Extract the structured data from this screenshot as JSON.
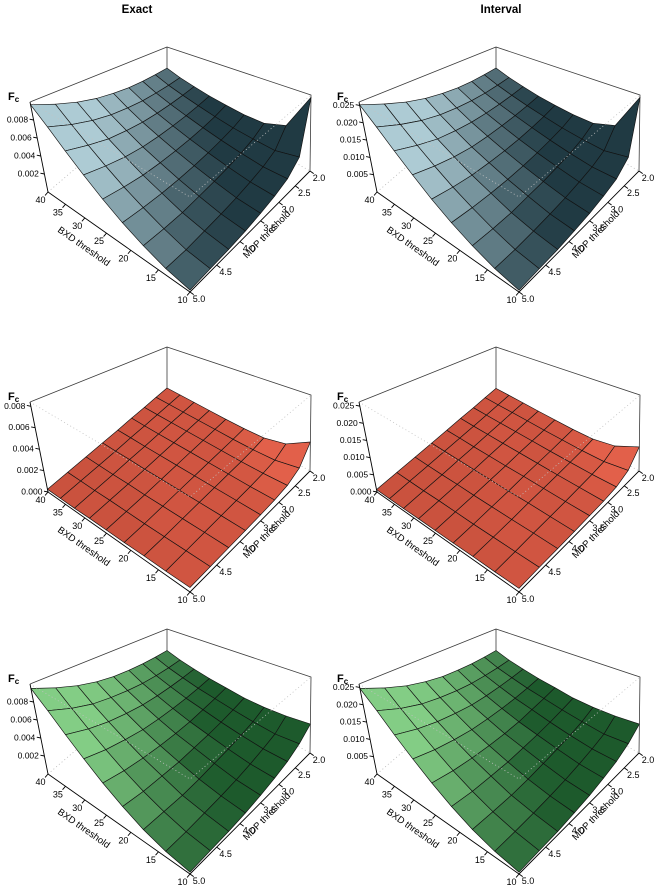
{
  "column_titles": {
    "left": "Exact",
    "right": "Interval"
  },
  "axes": {
    "z_label": "F",
    "z_label_sub": "c",
    "x_label": "BXD threshold",
    "y_label": "MDP threshold",
    "x_tick_labels": [
      "40",
      "35",
      "30",
      "25",
      "20",
      "15",
      "10"
    ],
    "y_tick_labels": [
      "5.0",
      "4.5",
      "4.0",
      "3.5",
      "3.0",
      "2.5",
      "2.0"
    ]
  },
  "chart_data": [
    {
      "type": "surface_3d",
      "column": "Exact",
      "row": 1,
      "color_family": "cool",
      "title": "Exact",
      "xlabel": "BXD threshold",
      "ylabel": "MDP threshold",
      "zlabel": "Fc",
      "x_range": [
        40,
        10
      ],
      "y_range": [
        5.0,
        2.0
      ],
      "z_axis_max": 0.01,
      "z_tick_labels": [
        "0.008",
        "0.006",
        "0.004",
        "0.002"
      ],
      "surface_color_light": "#adcbd4",
      "surface_color_dark": "#203a43",
      "x_grid": [
        40,
        36.25,
        32.5,
        28.75,
        25,
        21.25,
        17.5,
        13.75,
        10
      ],
      "y_grid": [
        5.0,
        4.625,
        4.25,
        3.875,
        3.5,
        3.125,
        2.75,
        2.375,
        2.0
      ],
      "z_unit": 0.001,
      "z_values": [
        [
          9.7,
          8.6,
          7.6,
          6.8,
          6.2,
          5.7,
          5.4,
          5.2,
          5.1
        ],
        [
          8.2,
          7.1,
          6.2,
          5.5,
          5.0,
          4.6,
          4.4,
          4.3,
          4.3
        ],
        [
          6.6,
          5.7,
          4.9,
          4.4,
          4.0,
          3.8,
          3.7,
          3.7,
          3.8
        ],
        [
          5.1,
          4.4,
          3.8,
          3.4,
          3.2,
          3.1,
          3.1,
          3.2,
          3.4
        ],
        [
          3.7,
          3.2,
          2.8,
          2.6,
          2.5,
          2.5,
          2.6,
          2.8,
          3.2
        ],
        [
          2.5,
          2.2,
          2.0,
          1.9,
          1.9,
          2.0,
          2.2,
          2.5,
          3.1
        ],
        [
          1.5,
          1.3,
          1.2,
          1.3,
          1.4,
          1.6,
          1.9,
          2.4,
          3.3
        ],
        [
          0.7,
          0.6,
          0.7,
          0.8,
          1.0,
          1.3,
          1.7,
          2.4,
          4.5
        ],
        [
          0.2,
          0.3,
          0.4,
          0.6,
          0.9,
          1.3,
          1.9,
          3.2,
          9.7
        ]
      ]
    },
    {
      "type": "surface_3d",
      "column": "Interval",
      "row": 1,
      "color_family": "cool",
      "title": "Interval",
      "xlabel": "BXD threshold",
      "ylabel": "MDP threshold",
      "zlabel": "Fc",
      "x_range": [
        40,
        10
      ],
      "y_range": [
        5.0,
        2.0
      ],
      "z_axis_max": 0.026,
      "z_tick_labels": [
        "0.025",
        "0.020",
        "0.015",
        "0.010",
        "0.005"
      ],
      "surface_color_light": "#adcbd4",
      "surface_color_dark": "#203a43",
      "x_grid": [
        40,
        36.25,
        32.5,
        28.75,
        25,
        21.25,
        17.5,
        13.75,
        10
      ],
      "y_grid": [
        5.0,
        4.625,
        4.25,
        3.875,
        3.5,
        3.125,
        2.75,
        2.375,
        2.0
      ],
      "z_unit": 0.001,
      "z_values": [
        [
          25.2,
          22.4,
          19.8,
          17.7,
          16.1,
          14.8,
          14.0,
          13.5,
          13.3
        ],
        [
          21.3,
          18.5,
          16.1,
          14.3,
          13.0,
          12.0,
          11.4,
          11.2,
          11.2
        ],
        [
          17.2,
          14.8,
          12.7,
          11.4,
          10.4,
          9.9,
          9.6,
          9.6,
          9.9
        ],
        [
          13.3,
          11.4,
          9.9,
          8.8,
          8.3,
          8.1,
          8.1,
          8.3,
          8.8
        ],
        [
          9.6,
          8.3,
          7.3,
          6.8,
          6.5,
          6.5,
          6.8,
          7.3,
          8.3
        ],
        [
          6.5,
          5.7,
          5.2,
          4.9,
          4.9,
          5.2,
          5.7,
          6.5,
          8.1
        ],
        [
          3.9,
          3.4,
          3.1,
          3.4,
          3.6,
          4.2,
          4.9,
          6.2,
          8.6
        ],
        [
          1.8,
          1.6,
          1.8,
          2.1,
          2.6,
          3.4,
          4.4,
          6.2,
          11.7
        ],
        [
          0.5,
          0.8,
          1.0,
          1.6,
          2.3,
          3.4,
          4.9,
          8.3,
          25.2
        ]
      ]
    },
    {
      "type": "surface_3d",
      "column": "Exact",
      "row": 2,
      "color_family": "warm",
      "title": "Exact",
      "xlabel": "BXD threshold",
      "ylabel": "MDP threshold",
      "zlabel": "Fc",
      "x_range": [
        40,
        10
      ],
      "y_range": [
        5.0,
        2.0
      ],
      "z_axis_max": 0.0084,
      "z_tick_labels": [
        "0.008",
        "0.006",
        "0.004",
        "0.002",
        "0.000"
      ],
      "surface_color_light": "#e2604a",
      "surface_color_dark": "#7c2517",
      "x_grid": [
        40,
        36.25,
        32.5,
        28.75,
        25,
        21.25,
        17.5,
        13.75,
        10
      ],
      "y_grid": [
        5.0,
        4.625,
        4.25,
        3.875,
        3.5,
        3.125,
        2.75,
        2.375,
        2.0
      ],
      "z_unit": 0.001,
      "z_values": [
        [
          0.25,
          0.25,
          0.25,
          0.25,
          0.25,
          0.3,
          0.3,
          0.35,
          0.4
        ],
        [
          0.25,
          0.25,
          0.25,
          0.25,
          0.3,
          0.3,
          0.35,
          0.4,
          0.45
        ],
        [
          0.25,
          0.25,
          0.25,
          0.3,
          0.3,
          0.35,
          0.4,
          0.45,
          0.5
        ],
        [
          0.3,
          0.3,
          0.3,
          0.3,
          0.35,
          0.4,
          0.45,
          0.5,
          0.55
        ],
        [
          0.3,
          0.3,
          0.3,
          0.35,
          0.4,
          0.45,
          0.5,
          0.55,
          0.6
        ],
        [
          0.3,
          0.3,
          0.35,
          0.4,
          0.45,
          0.5,
          0.55,
          0.6,
          0.7
        ],
        [
          0.35,
          0.35,
          0.4,
          0.45,
          0.5,
          0.55,
          0.6,
          0.7,
          0.9
        ],
        [
          0.35,
          0.4,
          0.45,
          0.5,
          0.55,
          0.6,
          0.7,
          0.9,
          1.6
        ],
        [
          0.4,
          0.45,
          0.5,
          0.55,
          0.6,
          0.7,
          0.9,
          1.5,
          3.2
        ]
      ]
    },
    {
      "type": "surface_3d",
      "column": "Interval",
      "row": 2,
      "color_family": "warm",
      "title": "Interval",
      "xlabel": "BXD threshold",
      "ylabel": "MDP threshold",
      "zlabel": "Fc",
      "x_range": [
        40,
        10
      ],
      "y_range": [
        5.0,
        2.0
      ],
      "z_axis_max": 0.0262,
      "z_tick_labels": [
        "0.025",
        "0.020",
        "0.015",
        "0.010",
        "0.005",
        "0.000"
      ],
      "surface_color_light": "#e2604a",
      "surface_color_dark": "#7c2517",
      "x_grid": [
        40,
        36.25,
        32.5,
        28.75,
        25,
        21.25,
        17.5,
        13.75,
        10
      ],
      "y_grid": [
        5.0,
        4.625,
        4.25,
        3.875,
        3.5,
        3.125,
        2.75,
        2.375,
        2.0
      ],
      "z_unit": 0.001,
      "z_values": [
        [
          0.7,
          0.7,
          0.7,
          0.7,
          0.7,
          0.8,
          0.8,
          0.9,
          1.0
        ],
        [
          0.7,
          0.7,
          0.7,
          0.7,
          0.8,
          0.8,
          0.9,
          1.0,
          1.2
        ],
        [
          0.7,
          0.7,
          0.7,
          0.8,
          0.8,
          0.9,
          1.0,
          1.2,
          1.3
        ],
        [
          0.8,
          0.8,
          0.8,
          0.8,
          0.9,
          1.0,
          1.2,
          1.3,
          1.4
        ],
        [
          0.8,
          0.8,
          0.8,
          0.9,
          1.0,
          1.2,
          1.3,
          1.4,
          1.6
        ],
        [
          0.8,
          0.8,
          0.9,
          1.0,
          1.2,
          1.3,
          1.4,
          1.6,
          1.8
        ],
        [
          0.9,
          0.9,
          1.0,
          1.2,
          1.3,
          1.4,
          1.6,
          1.8,
          2.3
        ],
        [
          0.9,
          1.0,
          1.2,
          1.3,
          1.4,
          1.6,
          1.8,
          2.3,
          4.2
        ],
        [
          1.0,
          1.2,
          1.3,
          1.4,
          1.6,
          1.8,
          2.3,
          3.9,
          8.3
        ]
      ]
    },
    {
      "type": "surface_3d",
      "column": "Exact",
      "row": 3,
      "color_family": "green",
      "title": "Exact",
      "xlabel": "BXD threshold",
      "ylabel": "MDP threshold",
      "zlabel": "Fc",
      "x_range": [
        40,
        10
      ],
      "y_range": [
        5.0,
        2.0
      ],
      "z_axis_max": 0.01,
      "z_tick_labels": [
        "0.008",
        "0.006",
        "0.004",
        "0.002"
      ],
      "surface_color_light": "#83cd85",
      "surface_color_dark": "#1d5a2c",
      "x_grid": [
        40,
        36.25,
        32.5,
        28.75,
        25,
        21.25,
        17.5,
        13.75,
        10
      ],
      "y_grid": [
        5.0,
        4.625,
        4.25,
        3.875,
        3.5,
        3.125,
        2.75,
        2.375,
        2.0
      ],
      "z_unit": 0.001,
      "z_values": [
        [
          9.5,
          8.4,
          7.4,
          6.6,
          6.0,
          5.6,
          5.3,
          5.1,
          5.0
        ],
        [
          8.0,
          6.9,
          6.0,
          5.4,
          4.9,
          4.5,
          4.3,
          4.2,
          4.2
        ],
        [
          6.4,
          5.5,
          4.8,
          4.3,
          3.9,
          3.7,
          3.6,
          3.6,
          3.7
        ],
        [
          4.9,
          4.2,
          3.7,
          3.3,
          3.1,
          3.0,
          3.0,
          3.1,
          3.3
        ],
        [
          3.5,
          3.0,
          2.7,
          2.5,
          2.4,
          2.4,
          2.6,
          2.8,
          3.1
        ],
        [
          2.3,
          2.0,
          1.9,
          1.8,
          1.9,
          2.0,
          2.2,
          2.5,
          2.9
        ],
        [
          1.3,
          1.2,
          1.1,
          1.2,
          1.4,
          1.6,
          1.9,
          2.3,
          3.0
        ],
        [
          0.6,
          0.6,
          0.7,
          0.8,
          1.0,
          1.3,
          1.7,
          2.2,
          3.3
        ],
        [
          0.2,
          0.3,
          0.4,
          0.6,
          0.9,
          1.3,
          1.8,
          2.6,
          3.8
        ]
      ]
    },
    {
      "type": "surface_3d",
      "column": "Interval",
      "row": 3,
      "color_family": "green",
      "title": "Interval",
      "xlabel": "BXD threshold",
      "ylabel": "MDP threshold",
      "zlabel": "Fc",
      "x_range": [
        40,
        10
      ],
      "y_range": [
        5.0,
        2.0
      ],
      "z_axis_max": 0.026,
      "z_tick_labels": [
        "0.025",
        "0.020",
        "0.015",
        "0.010",
        "0.005"
      ],
      "surface_color_light": "#83cd85",
      "surface_color_dark": "#1d5a2c",
      "x_grid": [
        40,
        36.25,
        32.5,
        28.75,
        25,
        21.25,
        17.5,
        13.75,
        10
      ],
      "y_grid": [
        5.0,
        4.625,
        4.25,
        3.875,
        3.5,
        3.125,
        2.75,
        2.375,
        2.0
      ],
      "z_unit": 0.001,
      "z_values": [
        [
          24.7,
          21.8,
          19.2,
          17.2,
          15.6,
          14.6,
          13.8,
          13.3,
          13.0
        ],
        [
          20.8,
          17.9,
          15.6,
          14.0,
          12.7,
          11.7,
          11.2,
          10.9,
          10.9
        ],
        [
          16.6,
          14.3,
          12.5,
          11.2,
          10.1,
          9.6,
          9.4,
          9.4,
          9.6
        ],
        [
          12.7,
          10.9,
          9.6,
          8.6,
          8.1,
          7.8,
          7.8,
          8.1,
          8.6
        ],
        [
          9.1,
          7.8,
          7.0,
          6.5,
          6.2,
          6.2,
          6.8,
          7.3,
          8.1
        ],
        [
          6.0,
          5.2,
          4.9,
          4.7,
          4.9,
          5.2,
          5.7,
          6.5,
          7.5
        ],
        [
          3.4,
          3.1,
          2.9,
          3.1,
          3.6,
          4.2,
          4.9,
          6.0,
          7.8
        ],
        [
          1.6,
          1.6,
          1.8,
          2.1,
          2.6,
          3.4,
          4.4,
          5.7,
          8.6
        ],
        [
          0.5,
          0.8,
          1.0,
          1.6,
          2.3,
          3.4,
          4.7,
          6.8,
          9.9
        ]
      ]
    }
  ]
}
